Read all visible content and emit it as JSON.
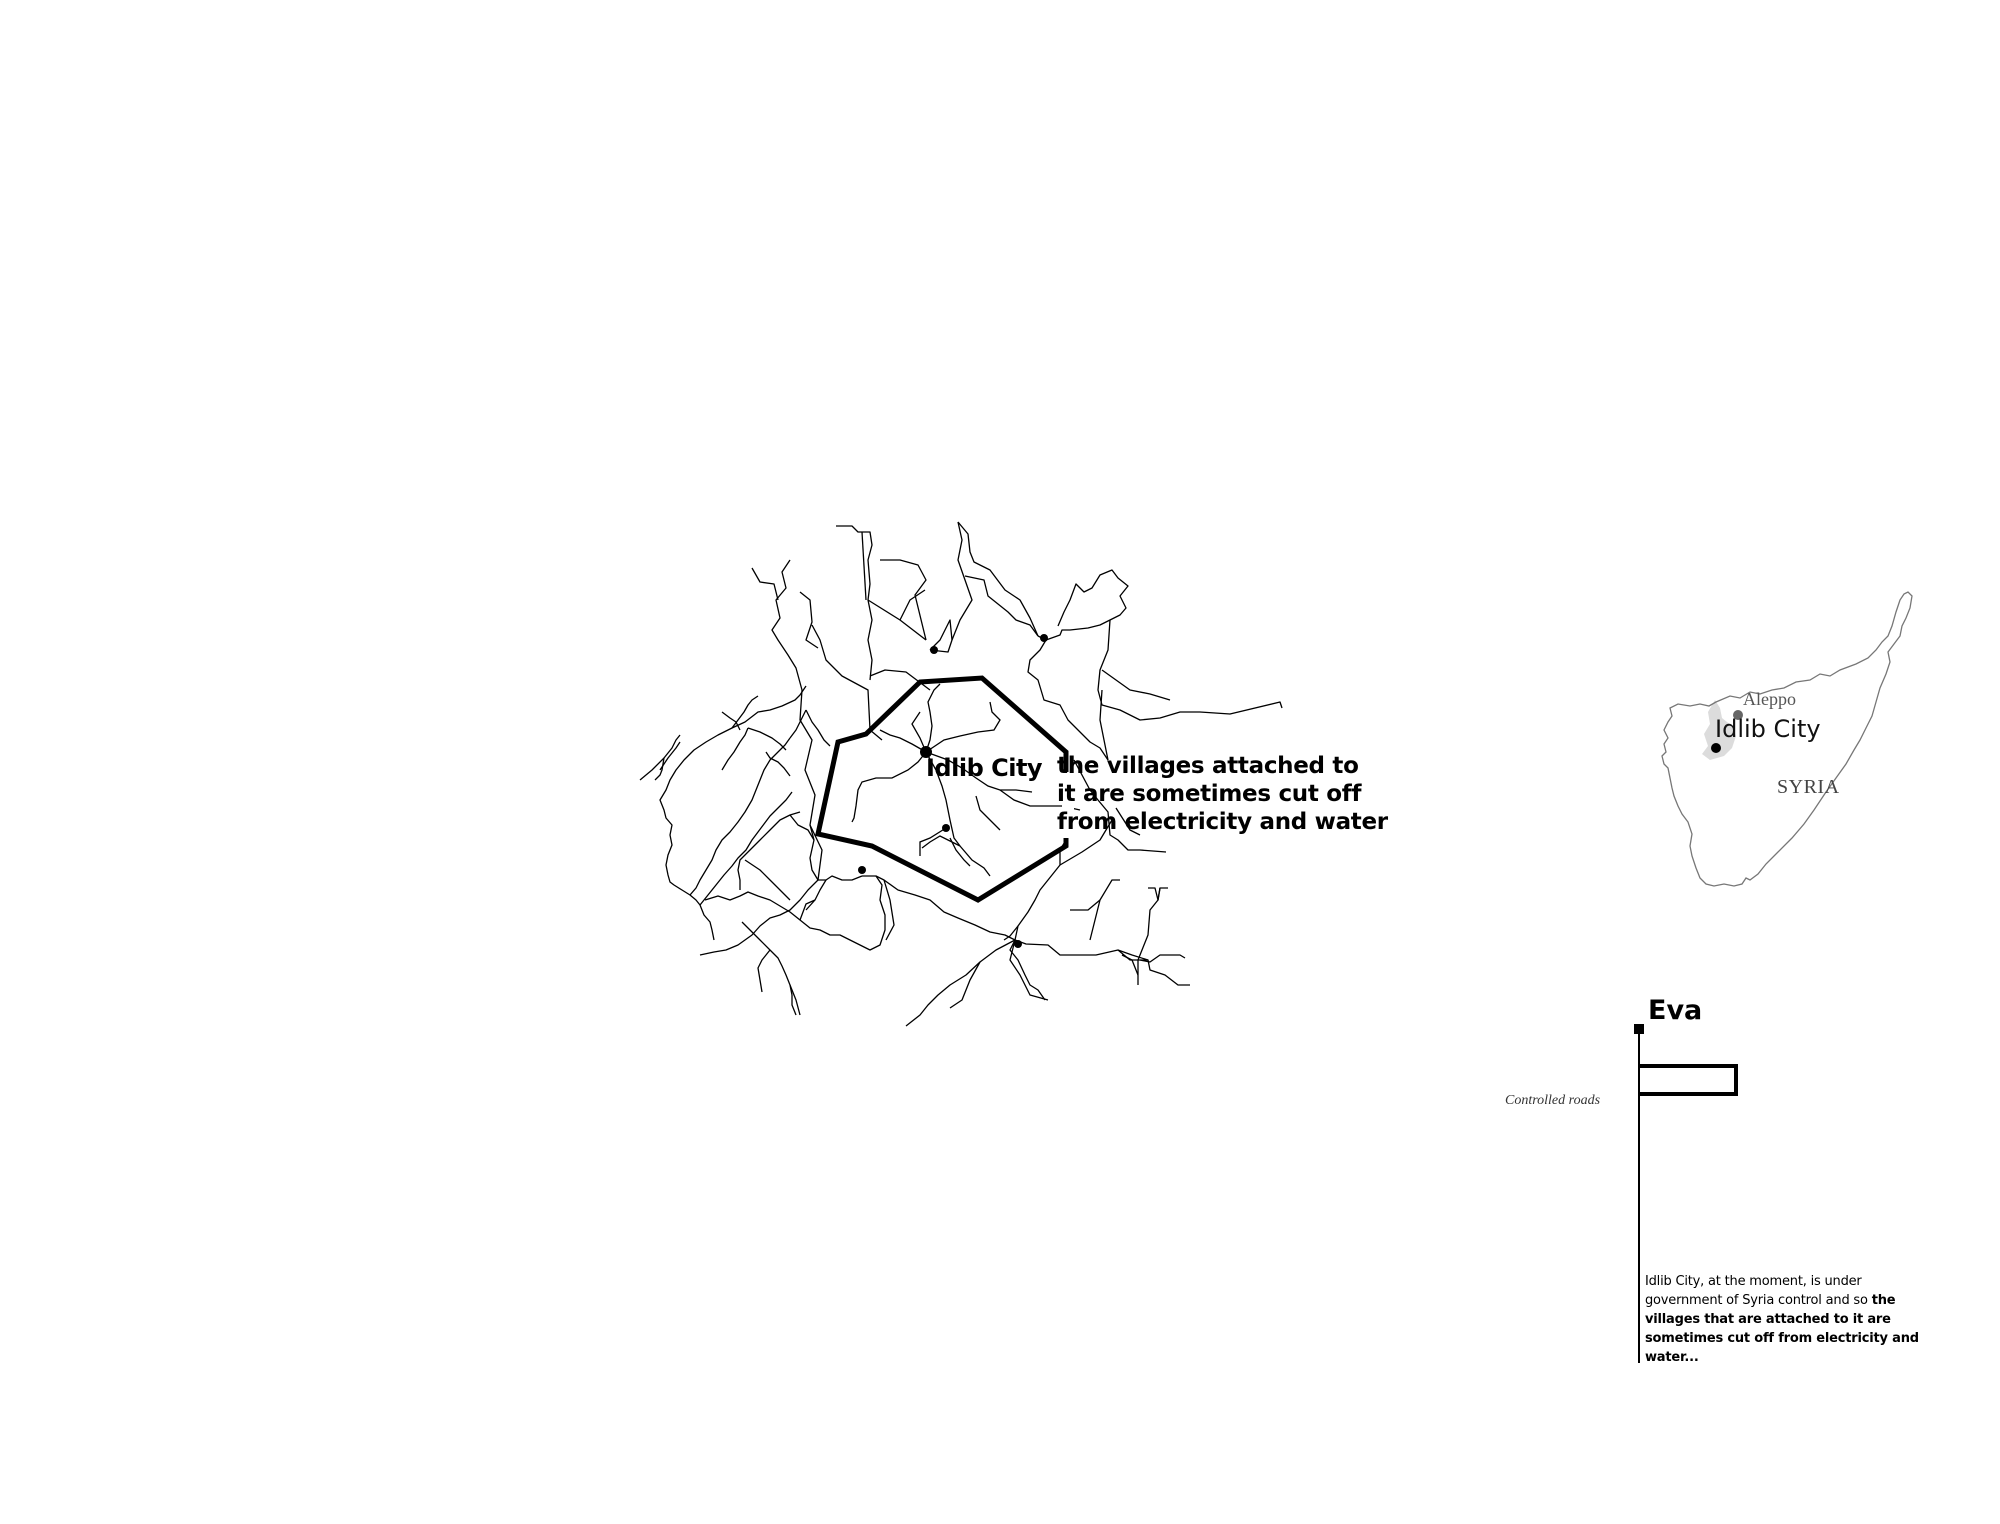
{
  "main_map": {
    "city_label": "Idlib City",
    "annotation_lines": [
      "the villages attached to",
      "it are sometimes cut off",
      "from electricity and water"
    ]
  },
  "inset_map": {
    "aleppo_label": "Aleppo",
    "idlib_label": "Idlib City",
    "country_label": "SYRIA"
  },
  "legend": {
    "title": "Eva",
    "caption": "Controlled roads",
    "description_normal": "Idlib City, at the moment, is under government of Syria control and so ",
    "description_bold": "the villages that are attached to it are sometimes cut off from electricity and water..."
  },
  "colors": {
    "roads": "#000000",
    "controlled_boundary": "#000000",
    "inset_border": "#777777",
    "inset_highlight": "#dddddd"
  }
}
